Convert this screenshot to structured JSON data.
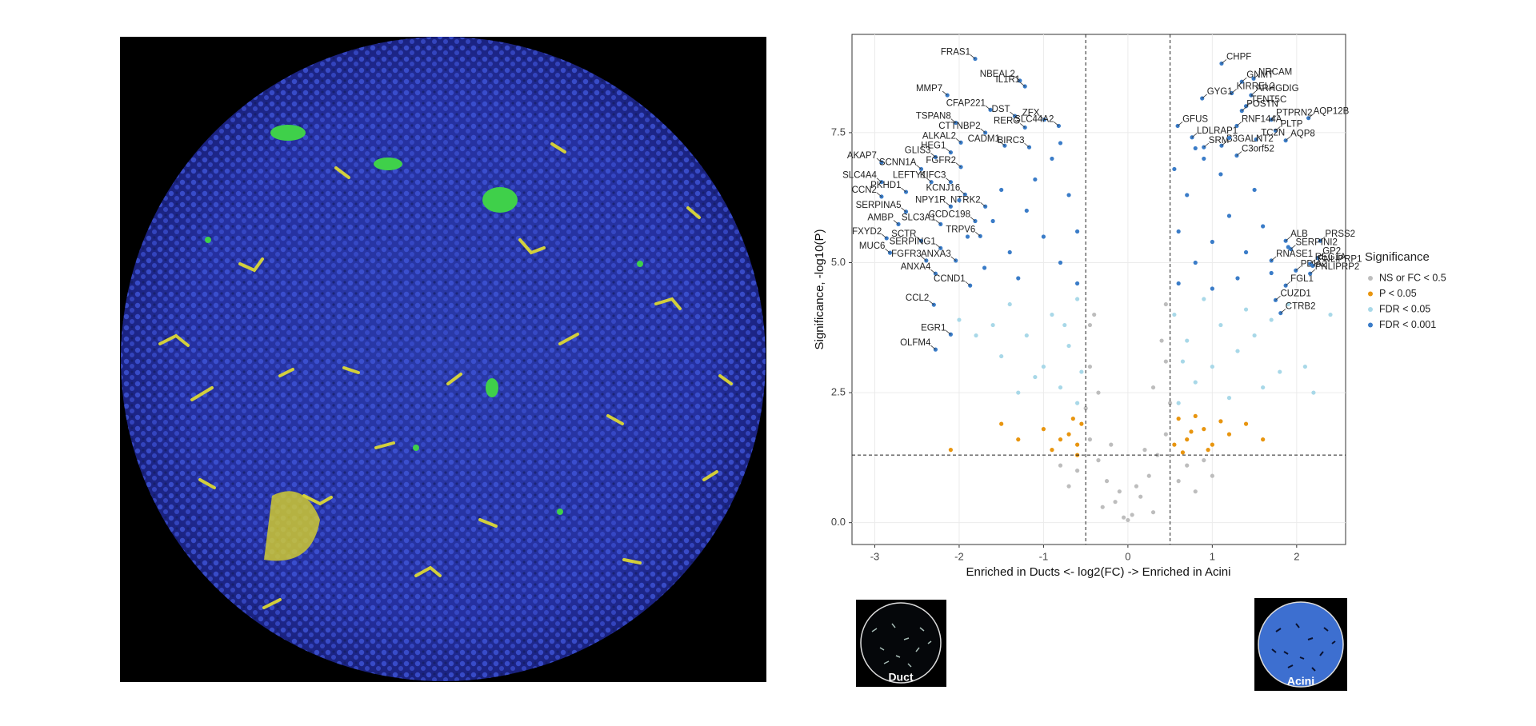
{
  "chart_data": {
    "type": "scatter",
    "xlabel": "Enriched in Ducts <- log2(FC) -> Enriched in Acini",
    "ylabel": "Significance, -log10(P)",
    "xlim": [
      -3.27,
      2.58
    ],
    "ylim": [
      -0.42,
      9.39
    ],
    "xticks": [
      -3,
      -2,
      -1,
      0,
      1,
      2
    ],
    "yticks": [
      {
        "value": 0,
        "label": "0.0"
      },
      2.5,
      {
        "value": 5,
        "label": "5.0"
      },
      7.5
    ],
    "grid": true,
    "vlines": [
      -0.5,
      0.5
    ],
    "hlines": [
      1.3
    ],
    "legend_title": "Significance",
    "legend": "right",
    "series": [
      {
        "name": "NS or FC < 0.5",
        "color": "#bdbdbd",
        "x": [
          -0.05,
          0.05,
          -0.15,
          0.15,
          -0.25,
          0.25,
          -0.35,
          0.35,
          -0.45,
          0.45,
          -0.5,
          0.5,
          -0.45,
          0.45,
          -0.4,
          0.45,
          -0.35,
          0.3,
          -0.2,
          0.2,
          -0.1,
          0.1,
          0.6,
          0.8,
          1.0,
          -0.6,
          -0.8,
          0.7,
          -0.3,
          0.3,
          0.0,
          0.4,
          -0.45,
          0.9,
          -0.7
        ],
        "values": [
          0.1,
          0.15,
          0.4,
          0.5,
          0.8,
          0.9,
          1.2,
          1.3,
          1.6,
          1.7,
          2.2,
          2.3,
          3.0,
          3.1,
          4.0,
          4.2,
          2.5,
          2.6,
          1.5,
          1.4,
          0.6,
          0.7,
          0.8,
          0.6,
          0.9,
          1.0,
          1.1,
          1.1,
          0.3,
          0.2,
          0.05,
          3.5,
          3.8,
          1.2,
          0.7
        ]
      },
      {
        "name": "P < 0.05",
        "color": "#e8950f",
        "x": [
          -0.6,
          -0.7,
          -0.55,
          -0.8,
          -1.0,
          -1.3,
          -2.1,
          -0.65,
          0.55,
          0.7,
          0.9,
          0.6,
          1.0,
          1.2,
          1.4,
          0.8,
          1.1,
          0.65,
          -0.9,
          0.95,
          1.6,
          -1.5,
          0.75,
          -0.6
        ],
        "values": [
          1.5,
          1.7,
          1.9,
          1.6,
          1.8,
          1.6,
          1.4,
          2.0,
          1.5,
          1.6,
          1.8,
          2.0,
          1.5,
          1.7,
          1.9,
          2.05,
          1.95,
          1.35,
          1.4,
          1.4,
          1.6,
          1.9,
          1.75,
          1.3
        ]
      },
      {
        "name": "FDR < 0.05",
        "color": "#a8d8e8",
        "x": [
          -0.6,
          -0.8,
          -1.0,
          -0.7,
          -1.2,
          -0.9,
          -1.4,
          -0.6,
          -1.6,
          -1.8,
          -2.0,
          -1.1,
          -1.5,
          -0.55,
          0.6,
          0.8,
          1.0,
          1.3,
          1.5,
          1.7,
          0.7,
          1.1,
          1.9,
          0.9,
          1.4,
          2.1,
          2.2,
          1.8,
          0.55,
          1.2,
          0.65,
          2.4,
          1.6,
          -1.3,
          -0.75
        ],
        "values": [
          2.3,
          2.6,
          3.0,
          3.4,
          3.6,
          4.0,
          4.2,
          4.3,
          3.8,
          3.6,
          3.9,
          2.8,
          3.2,
          2.9,
          2.3,
          2.7,
          3.0,
          3.3,
          3.6,
          3.9,
          3.5,
          3.8,
          4.2,
          4.3,
          4.1,
          3.0,
          2.5,
          2.9,
          4.0,
          2.4,
          3.1,
          4.0,
          2.6,
          2.5,
          3.8
        ]
      },
      {
        "name": "FDR < 0.001",
        "color": "#3a7cc8",
        "x": [
          -1.81,
          -1.28,
          -1.22,
          -2.14,
          -1.63,
          -1.34,
          -0.99,
          -2.04,
          -1.22,
          -0.82,
          -1.69,
          -1.98,
          -1.46,
          -1.17,
          -2.1,
          -2.28,
          -2.92,
          -2.45,
          -1.98,
          -2.33,
          -2.1,
          -2.92,
          -2.63,
          -2.92,
          -1.93,
          -2.1,
          -1.69,
          -2.63,
          -1.81,
          -2.22,
          -2.72,
          -1.75,
          -2.86,
          -2.45,
          -2.22,
          -2.82,
          -2.39,
          -2.04,
          -2.28,
          -1.87,
          -2.3,
          -2.1,
          -2.28,
          1.11,
          1.35,
          1.49,
          1.23,
          1.46,
          0.88,
          1.4,
          2.14,
          1.35,
          1.7,
          0.59,
          1.29,
          1.75,
          0.76,
          1.52,
          1.87,
          1.11,
          0.9,
          1.29,
          2.28,
          1.87,
          1.93,
          2.25,
          1.7,
          1.99,
          2.16,
          1.87,
          2.16,
          1.75,
          2.19,
          1.81,
          -0.6,
          -0.8,
          -1.0,
          -1.2,
          -0.7,
          -1.4,
          -1.6,
          -1.1,
          -0.9,
          -1.3,
          -1.7,
          -0.6,
          -1.5,
          -0.8,
          -1.9,
          -2.0,
          0.6,
          0.8,
          1.0,
          1.2,
          0.7,
          1.4,
          1.6,
          1.1,
          0.9,
          1.3,
          1.7,
          0.6,
          1.5,
          0.8,
          1.9,
          1.2,
          0.55,
          1.0
        ],
        "values": [
          8.92,
          8.5,
          8.39,
          8.22,
          7.94,
          7.82,
          7.75,
          7.69,
          7.6,
          7.63,
          7.5,
          7.31,
          7.25,
          7.22,
          7.12,
          7.03,
          6.93,
          6.8,
          6.84,
          6.55,
          6.55,
          6.55,
          6.36,
          6.27,
          6.31,
          6.08,
          6.08,
          5.98,
          5.8,
          5.74,
          5.74,
          5.51,
          5.47,
          5.42,
          5.28,
          5.19,
          5.04,
          5.04,
          4.79,
          4.56,
          4.19,
          3.62,
          3.33,
          8.83,
          8.48,
          8.54,
          8.26,
          8.22,
          8.16,
          8.01,
          7.78,
          7.92,
          7.75,
          7.63,
          7.63,
          7.54,
          7.41,
          7.37,
          7.35,
          7.25,
          7.22,
          7.06,
          5.42,
          5.42,
          5.26,
          5.09,
          5.04,
          4.85,
          4.98,
          4.56,
          4.79,
          4.28,
          4.94,
          4.03,
          4.6,
          5.0,
          5.5,
          6.0,
          6.3,
          5.2,
          5.8,
          6.6,
          7.0,
          4.7,
          4.9,
          5.6,
          6.4,
          7.3,
          5.5,
          6.2,
          4.6,
          5.0,
          5.4,
          5.9,
          6.3,
          5.2,
          5.7,
          6.7,
          7.0,
          4.7,
          4.8,
          5.6,
          6.4,
          7.2,
          5.3,
          7.4,
          6.8,
          4.5
        ],
        "labels": [
          "FRAS1",
          "NBEAL2",
          "IL1R1",
          "MMP7",
          "CFAP221",
          "DST",
          "ZFX",
          "TSPAN8",
          "RERG",
          "SLC44A2",
          "CTTNBP2",
          "ALKAL2",
          "CADM1",
          "BIRC3",
          "HEG1",
          "GLIS3",
          "AKAP7",
          "SCNN1A",
          "FGFR2",
          "LEFTY1",
          "KIFC3",
          "SLC4A4",
          "PKHD1",
          "CCN2",
          "KCNJ16",
          "NPY1R",
          "NTRK2",
          "SERPINA5",
          "CCDC198",
          "SLC3A1",
          "AMBP",
          "TRPV6",
          "FXYD2",
          "SCTR",
          "SERPING1",
          "MUC6",
          "FGFR3",
          "ANXA3",
          "ANXA4",
          "CCND1",
          "CCL2",
          "EGR1",
          "OLFM4",
          "CHPF",
          "GNMT",
          "NRCAM",
          "KIRREL2",
          "ARHGDIG",
          "GYG1",
          "TENT5C",
          "AQP12B",
          "POSTN",
          "PTPRN2",
          "GFUS",
          "RNF144A",
          "PLTP",
          "LDLRAP1",
          "TC2N",
          "AQP8",
          "B3GALNT2",
          "SRM",
          "C3orf52",
          "PRSS2",
          "ALB",
          "SERPINI2",
          "GP2",
          "RNASE1",
          "PDIA2",
          "REG1A",
          "FGL1",
          "PNLIPRP2",
          "CUZD1",
          "PNLIPRP1",
          "CTRB2",
          null,
          null,
          null,
          null,
          null,
          null,
          null,
          null,
          null,
          null,
          null,
          null,
          null,
          null,
          null,
          null,
          null,
          null,
          null,
          null,
          null,
          null,
          null,
          null,
          null,
          null,
          null,
          null,
          null,
          null,
          null,
          null,
          null,
          null
        ]
      }
    ]
  },
  "thumbnails": {
    "duct": "Duct",
    "acini": "Acini"
  }
}
